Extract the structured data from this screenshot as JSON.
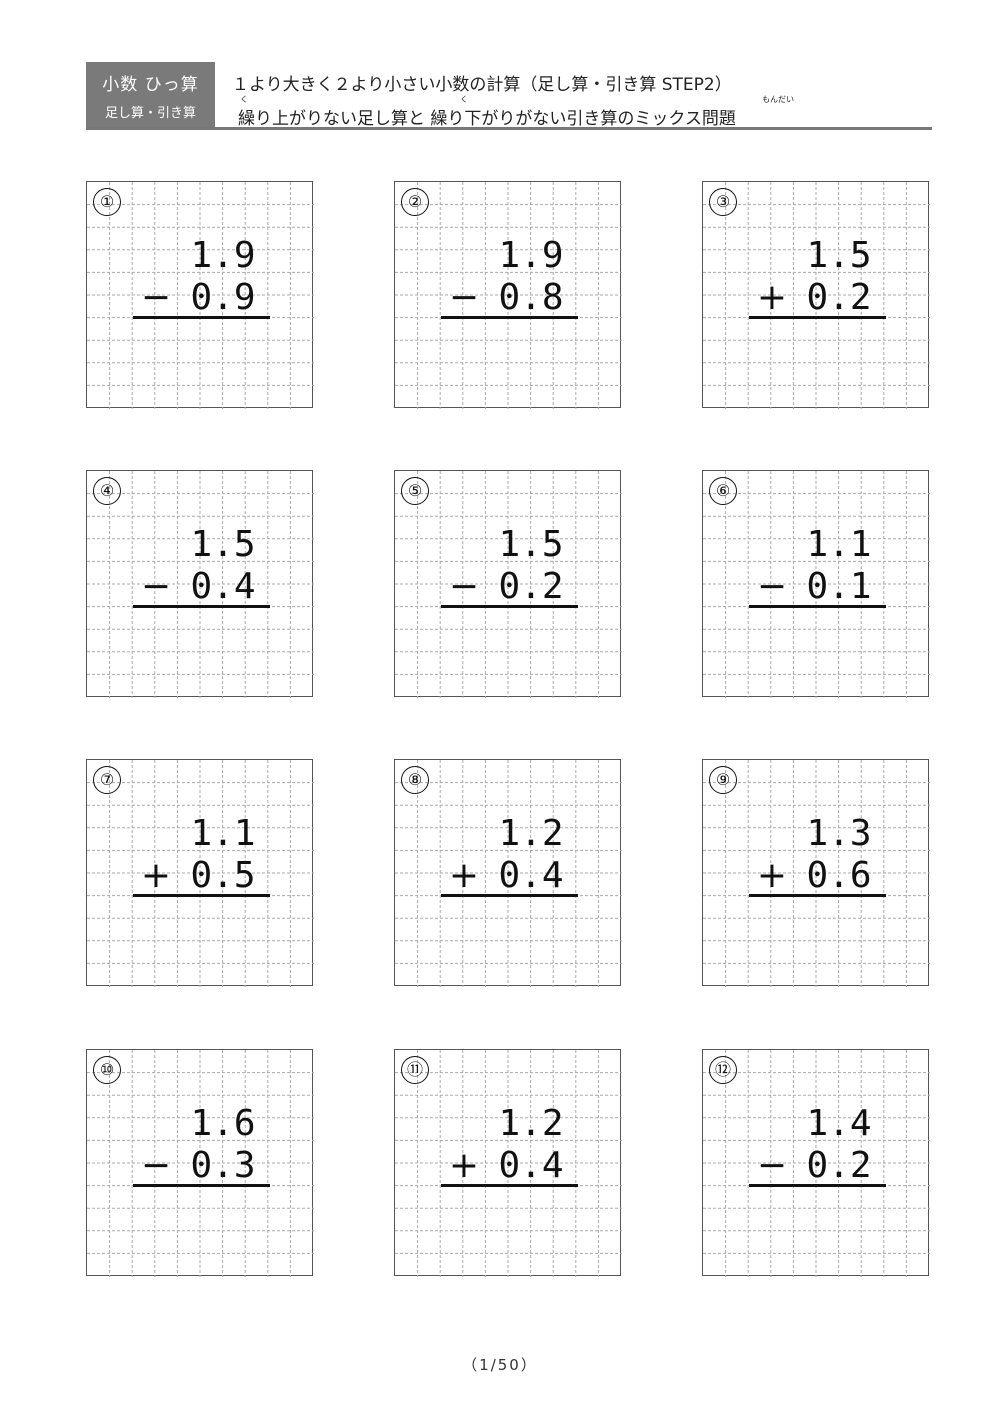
{
  "header": {
    "category": "小数 ひっ算",
    "subcategory": "足し算・引き算",
    "title": "１より大きく２より小さい小数の計算（足し算・引き算 STEP2）",
    "subtitle": "繰り上がりない足し算と 繰り下がりがない引き算のミックス問題",
    "ruby": [
      {
        "base": "繰",
        "reading": "く"
      },
      {
        "base": "繰",
        "reading": "く"
      },
      {
        "base": "問題",
        "reading": "もんだい"
      }
    ]
  },
  "problems": [
    {
      "label": "①",
      "top": "1.9",
      "op": "−",
      "bottom": "0.9"
    },
    {
      "label": "②",
      "top": "1.9",
      "op": "−",
      "bottom": "0.8"
    },
    {
      "label": "③",
      "top": "1.5",
      "op": "+",
      "bottom": "0.2"
    },
    {
      "label": "④",
      "top": "1.5",
      "op": "−",
      "bottom": "0.4"
    },
    {
      "label": "⑤",
      "top": "1.5",
      "op": "−",
      "bottom": "0.2"
    },
    {
      "label": "⑥",
      "top": "1.1",
      "op": "−",
      "bottom": "0.1"
    },
    {
      "label": "⑦",
      "top": "1.1",
      "op": "+",
      "bottom": "0.5"
    },
    {
      "label": "⑧",
      "top": "1.2",
      "op": "+",
      "bottom": "0.4"
    },
    {
      "label": "⑨",
      "top": "1.3",
      "op": "+",
      "bottom": "0.6"
    },
    {
      "label": "⑩",
      "top": "1.6",
      "op": "−",
      "bottom": "0.3"
    },
    {
      "label": "⑪",
      "top": "1.2",
      "op": "+",
      "bottom": "0.4"
    },
    {
      "label": "⑫",
      "top": "1.4",
      "op": "−",
      "bottom": "0.2"
    }
  ],
  "footer": {
    "page": "（1/50）"
  }
}
